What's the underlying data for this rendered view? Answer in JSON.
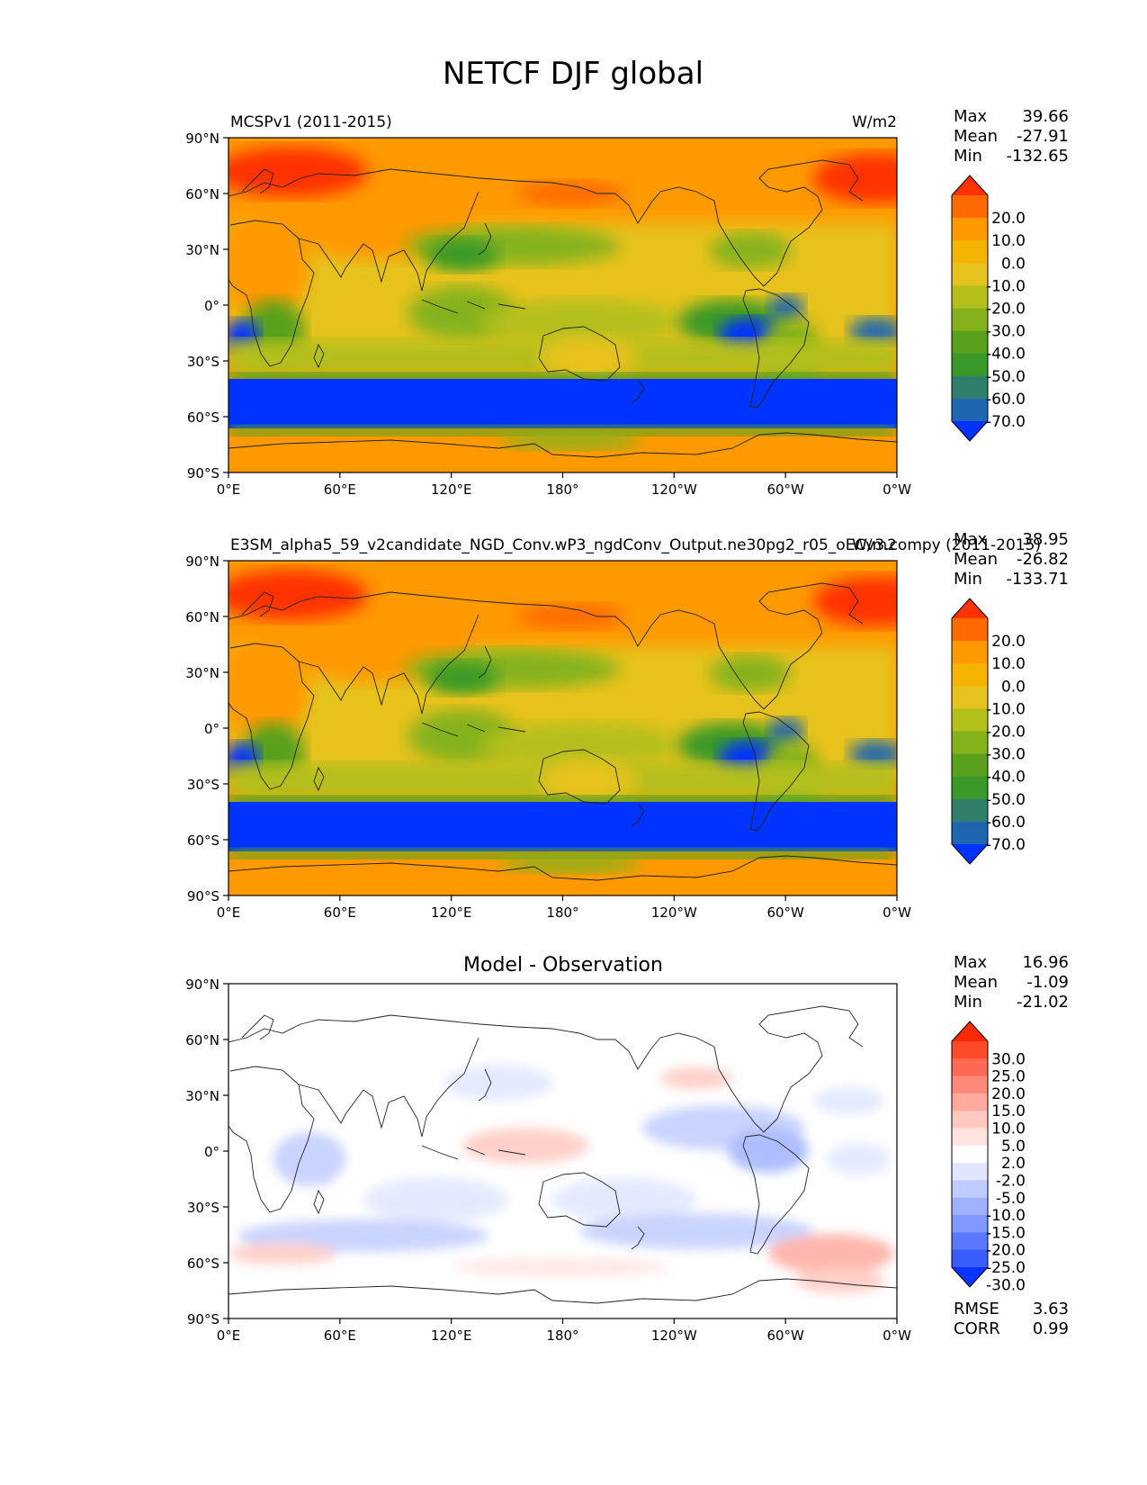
{
  "figure": {
    "title": "NETCF DJF global",
    "units": "W/m2"
  },
  "axes": {
    "lat_ticks": [
      "90°N",
      "60°N",
      "30°N",
      "0°",
      "30°S",
      "60°S",
      "90°S"
    ],
    "lon_ticks": [
      "0°E",
      "60°E",
      "120°E",
      "180°",
      "120°W",
      "60°W",
      "0°W"
    ]
  },
  "panels": [
    {
      "id": "test",
      "title_left": "MCSPv1 (2011-2015)",
      "title_center": "",
      "title_right": "W/m2",
      "stats": [
        {
          "label": "Max",
          "value": "39.66"
        },
        {
          "label": "Mean",
          "value": "-27.91"
        },
        {
          "label": "Min",
          "value": "-132.65"
        }
      ]
    },
    {
      "id": "reference",
      "title_left": "E3SM_alpha5_59_v2candidate_NGD_Conv.wP3_ngdConv_Output.ne30pg2_r05_oECv3.compy (2011-2015)",
      "title_center": "",
      "title_right": "W/m2",
      "stats": [
        {
          "label": "Max",
          "value": "38.95"
        },
        {
          "label": "Mean",
          "value": "-26.82"
        },
        {
          "label": "Min",
          "value": "-133.71"
        }
      ]
    },
    {
      "id": "diff",
      "title_left": "",
      "title_center": "Model - Observation",
      "title_right": "",
      "stats": [
        {
          "label": "Max",
          "value": "16.96"
        },
        {
          "label": "Mean",
          "value": "-1.09"
        },
        {
          "label": "Min",
          "value": "-21.02"
        }
      ],
      "extra_stats": [
        {
          "label": "RMSE",
          "value": "3.63"
        },
        {
          "label": "CORR",
          "value": "0.99"
        }
      ]
    }
  ],
  "colorbars": {
    "main": {
      "labels": [
        "20.0",
        "10.0",
        "0.0",
        "-10.0",
        "-20.0",
        "-30.0",
        "-40.0",
        "-50.0",
        "-60.0",
        "-70.0"
      ],
      "colors": [
        "#ff3300",
        "#ff6a00",
        "#ff9900",
        "#f5b400",
        "#e6c21f",
        "#b3bf1a",
        "#85b21a",
        "#59a11c",
        "#3a9a28",
        "#2f7f6a",
        "#1f66b0",
        "#0033ff"
      ]
    },
    "diff": {
      "labels": [
        "30.0",
        "25.0",
        "20.0",
        "15.0",
        "10.0",
        "5.0",
        "2.0",
        "-2.0",
        "-5.0",
        "-10.0",
        "-15.0",
        "-20.0",
        "-25.0",
        "-30.0"
      ],
      "colors": [
        "#ff2a00",
        "#ff4a2a",
        "#ff6a55",
        "#ff8a7a",
        "#ffaa9e",
        "#ffc8c0",
        "#ffe4e0",
        "#ffffff",
        "#e0e6ff",
        "#c0ccff",
        "#a0b2ff",
        "#8098ff",
        "#5a78ff",
        "#3a5cff",
        "#0a33ff"
      ]
    }
  }
}
